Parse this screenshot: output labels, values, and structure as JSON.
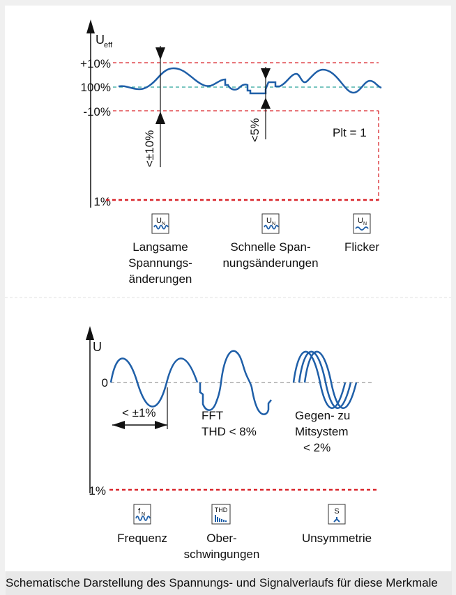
{
  "top": {
    "axis_label": "U",
    "axis_sub": "eff",
    "ticks": [
      "+10%",
      "100%",
      "-10%",
      "1%"
    ],
    "annot_slow": "<±10%",
    "annot_fast": "<5%",
    "plt": "Plt = 1",
    "icon_un": "U",
    "icon_un_sub": "N",
    "label_slow": [
      "Langsame",
      "Spannungs-",
      "änderungen"
    ],
    "label_fast": [
      "Schnelle Span-",
      "nungsänderungen"
    ],
    "label_flicker": "Flicker"
  },
  "bottom": {
    "axis_label": "U",
    "tick_zero": "0",
    "tick_1pct": "1%",
    "freq_annot": "< ±1%",
    "fft_label": [
      "FFT",
      "THD < 8%"
    ],
    "gegen_label": [
      "Gegen- zu",
      "Mitsystem",
      "< 2%"
    ],
    "icon_fn": "f",
    "icon_fn_sub": "N",
    "icon_thd": "THD",
    "icon_s": "S",
    "label_freq": "Frequenz",
    "label_harm": [
      "Ober-",
      "schwingungen"
    ],
    "label_unsym": "Unsymmetrie"
  },
  "caption": "Schematische Darstellung des Spannungs- und Signalverlaufs für diese Merkmale",
  "colors": {
    "curve": "#1f5fa8",
    "limit": "#d9252b",
    "nominal": "#2aa59a",
    "zero": "#999999",
    "icon": "#1f5fa8"
  }
}
